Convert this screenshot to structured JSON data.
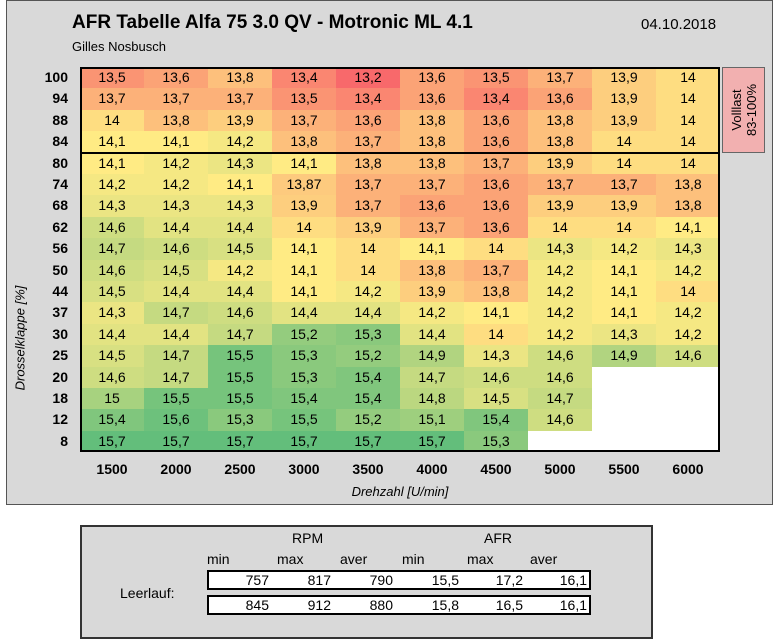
{
  "header": {
    "title": "AFR Tabelle Alfa 75 3.0 QV - Motronic ML 4.1",
    "date": "04.10.2018",
    "author": "Gilles Nosbusch"
  },
  "chart_data": {
    "type": "heatmap",
    "title": "AFR Tabelle Alfa 75 3.0 QV - Motronic ML 4.1",
    "xlabel": "Drehzahl [U/min]",
    "ylabel": "Drosselklappe [%]",
    "x": [
      "1500",
      "2000",
      "2500",
      "3000",
      "3500",
      "4000",
      "4500",
      "5000",
      "5500",
      "6000"
    ],
    "y": [
      "100",
      "94",
      "88",
      "84",
      "80",
      "74",
      "68",
      "62",
      "56",
      "50",
      "44",
      "37",
      "30",
      "25",
      "20",
      "18",
      "12",
      "8"
    ],
    "values": [
      [
        "13,5",
        "13,6",
        "13,8",
        "13,4",
        "13,2",
        "13,6",
        "13,5",
        "13,7",
        "13,9",
        "14"
      ],
      [
        "13,7",
        "13,7",
        "13,7",
        "13,5",
        "13,4",
        "13,6",
        "13,4",
        "13,6",
        "13,9",
        "14"
      ],
      [
        "14",
        "13,8",
        "13,9",
        "13,7",
        "13,6",
        "13,8",
        "13,6",
        "13,8",
        "13,9",
        "14"
      ],
      [
        "14,1",
        "14,1",
        "14,2",
        "13,8",
        "13,7",
        "13,8",
        "13,6",
        "13,8",
        "14",
        "14"
      ],
      [
        "14,1",
        "14,2",
        "14,3",
        "14,1",
        "13,8",
        "13,8",
        "13,7",
        "13,9",
        "14",
        "14"
      ],
      [
        "14,2",
        "14,2",
        "14,1",
        "13,87",
        "13,7",
        "13,7",
        "13,6",
        "13,7",
        "13,7",
        "13,8"
      ],
      [
        "14,3",
        "14,3",
        "14,3",
        "13,9",
        "13,7",
        "13,6",
        "13,6",
        "13,9",
        "13,9",
        "13,8"
      ],
      [
        "14,6",
        "14,4",
        "14,4",
        "14",
        "13,9",
        "13,7",
        "13,6",
        "14",
        "14",
        "14,1"
      ],
      [
        "14,7",
        "14,6",
        "14,5",
        "14,1",
        "14",
        "14,1",
        "14",
        "14,3",
        "14,2",
        "14,3"
      ],
      [
        "14,6",
        "14,5",
        "14,2",
        "14,1",
        "14",
        "13,8",
        "13,7",
        "14,2",
        "14,1",
        "14,2"
      ],
      [
        "14,5",
        "14,4",
        "14,4",
        "14,1",
        "14,2",
        "13,9",
        "13,8",
        "14,2",
        "14,1",
        "14"
      ],
      [
        "14,3",
        "14,7",
        "14,6",
        "14,4",
        "14,4",
        "14,2",
        "14,1",
        "14,2",
        "14,1",
        "14,2"
      ],
      [
        "14,4",
        "14,4",
        "14,7",
        "15,2",
        "15,3",
        "14,4",
        "14",
        "14,2",
        "14,3",
        "14,2"
      ],
      [
        "14,5",
        "14,7",
        "15,5",
        "15,3",
        "15,2",
        "14,9",
        "14,3",
        "14,6",
        "14,9",
        "14,6"
      ],
      [
        "14,6",
        "14,7",
        "15,5",
        "15,3",
        "15,4",
        "14,7",
        "14,6",
        "14,6",
        "",
        ""
      ],
      [
        "15",
        "15,5",
        "15,5",
        "15,4",
        "15,4",
        "14,8",
        "14,5",
        "14,7",
        "",
        ""
      ],
      [
        "15,4",
        "15,6",
        "15,3",
        "15,5",
        "15,2",
        "15,1",
        "15,4",
        "14,6",
        "",
        ""
      ],
      [
        "15,7",
        "15,7",
        "15,7",
        "15,7",
        "15,7",
        "15,7",
        "15,3",
        "",
        "",
        ""
      ]
    ],
    "annotation": "Volllast 83-100%",
    "colorscale": [
      "#f8696b",
      "#ffeb84",
      "#63be7b"
    ]
  },
  "summary": {
    "rpm_header": "RPM",
    "afr_header": "AFR",
    "sub_headers": [
      "min",
      "max",
      "aver",
      "min",
      "max",
      "aver"
    ],
    "row_label": "Leerlauf:",
    "rows": [
      [
        "757",
        "817",
        "790",
        "15,5",
        "17,2",
        "16,1"
      ],
      [
        "845",
        "912",
        "880",
        "15,8",
        "16,5",
        "16,1"
      ]
    ]
  }
}
